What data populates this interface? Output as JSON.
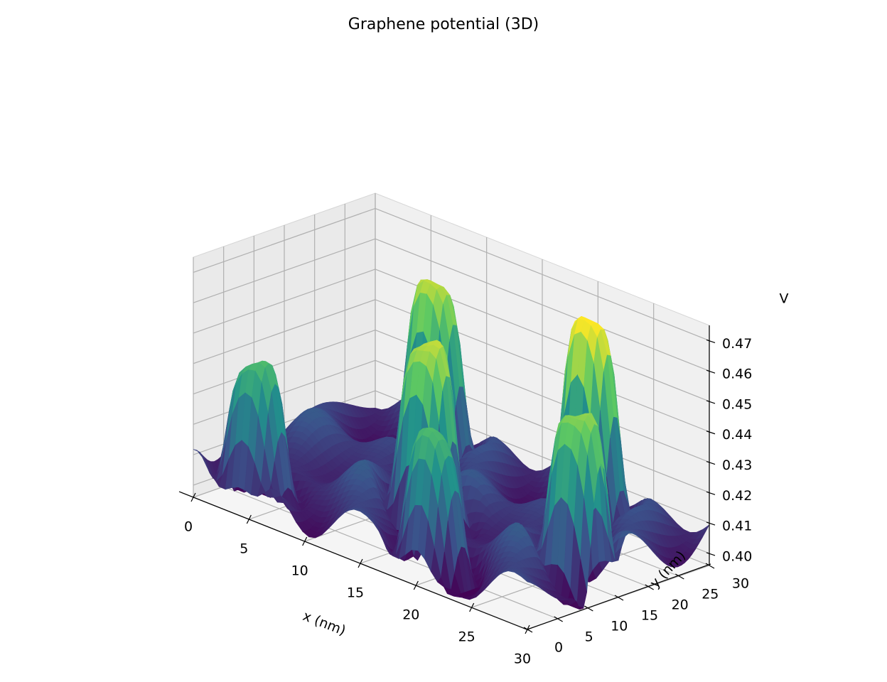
{
  "chart_data": {
    "type": "surface3d",
    "title": "Graphene potential (3D)",
    "xlabel": "x (nm)",
    "ylabel": "y (nm)",
    "zlabel": "V",
    "xlim": [
      0,
      30
    ],
    "ylim": [
      0,
      30
    ],
    "zlim": [
      0.396,
      0.475
    ],
    "x_ticks": [
      "0",
      "5",
      "10",
      "15",
      "20",
      "25",
      "30"
    ],
    "y_ticks": [
      "0",
      "5",
      "10",
      "15",
      "20",
      "25",
      "30"
    ],
    "z_ticks": [
      "0.40",
      "0.41",
      "0.42",
      "0.43",
      "0.44",
      "0.45",
      "0.46",
      "0.47"
    ],
    "colormap": "viridis",
    "grid": true,
    "surface": {
      "baseline_V": 0.408,
      "peaks": [
        {
          "x": 4,
          "y": 3,
          "peak_V": 0.442
        },
        {
          "x": 15,
          "y": 11,
          "peak_V": 0.463
        },
        {
          "x": 20,
          "y": 3,
          "peak_V": 0.44
        },
        {
          "x": 28,
          "y": 12,
          "peak_V": 0.458
        },
        {
          "x": 22,
          "y": 25,
          "peak_V": 0.468
        },
        {
          "x": 8,
          "y": 25,
          "peak_V": 0.46
        }
      ]
    }
  }
}
